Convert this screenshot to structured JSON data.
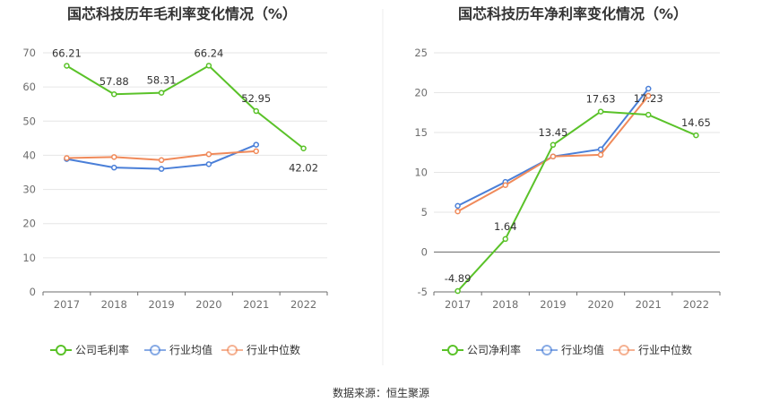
{
  "chart_data": [
    {
      "type": "line",
      "title": "国芯科技历年毛利率变化情况（%）",
      "categories": [
        "2017",
        "2018",
        "2019",
        "2020",
        "2021",
        "2022"
      ],
      "ylim": [
        0,
        70
      ],
      "yticks": [
        0,
        10,
        20,
        30,
        40,
        50,
        60,
        70
      ],
      "grid": true,
      "legend_position": "bottom",
      "series": [
        {
          "name": "公司毛利率",
          "color": "#5ac229",
          "values": [
            66.21,
            57.88,
            58.31,
            66.24,
            52.95,
            42.02
          ],
          "labels": [
            "66.21",
            "57.88",
            "58.31",
            "66.24",
            "52.95",
            "42.02"
          ]
        },
        {
          "name": "行业均值",
          "color": "#4a7fd8",
          "values": [
            38.9,
            36.4,
            36.0,
            37.4,
            43.1,
            null
          ]
        },
        {
          "name": "行业中位数",
          "color": "#f08a5a",
          "values": [
            39.2,
            39.5,
            38.6,
            40.3,
            41.2,
            null
          ]
        }
      ]
    },
    {
      "type": "line",
      "title": "国芯科技历年净利率变化情况（%）",
      "categories": [
        "2017",
        "2018",
        "2019",
        "2020",
        "2021",
        "2022"
      ],
      "ylim": [
        -5,
        25
      ],
      "yticks": [
        -5,
        0,
        5,
        10,
        15,
        20,
        25
      ],
      "grid": true,
      "legend_position": "bottom",
      "series": [
        {
          "name": "公司净利率",
          "color": "#5ac229",
          "values": [
            -4.89,
            1.64,
            13.45,
            17.63,
            17.23,
            14.65
          ],
          "labels": [
            "-4.89",
            "1.64",
            "13.45",
            "17.63",
            "17.23",
            "14.65"
          ]
        },
        {
          "name": "行业均值",
          "color": "#4a7fd8",
          "values": [
            5.8,
            8.8,
            12.0,
            12.9,
            20.5,
            null
          ]
        },
        {
          "name": "行业中位数",
          "color": "#f08a5a",
          "values": [
            5.1,
            8.4,
            12.0,
            12.2,
            19.6,
            null
          ]
        }
      ]
    }
  ],
  "footer": {
    "source": "数据来源：恒生聚源"
  }
}
